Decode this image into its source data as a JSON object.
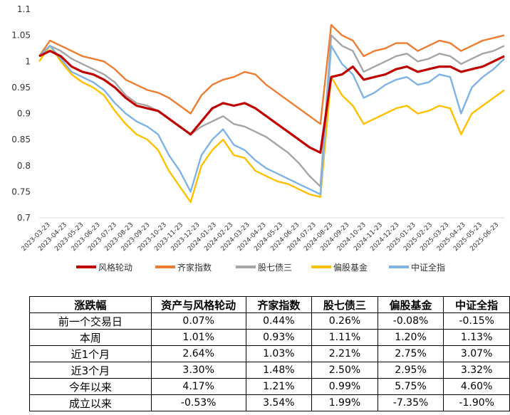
{
  "chart_data": {
    "type": "line",
    "ylim": [
      0.7,
      1.1
    ],
    "y_ticks": [
      "0.7",
      "0.75",
      "0.8",
      "0.85",
      "0.9",
      "0.95",
      "1",
      "1.05",
      "1.1"
    ],
    "x_ticks": [
      "2023-03-23",
      "2023-04-23",
      "2023-05-23",
      "2023-06-23",
      "2023-07-23",
      "2023-08-23",
      "2023-09-23",
      "2023-10-23",
      "2023-11-23",
      "2023-12-23",
      "2024-01-23",
      "2024-02-23",
      "2024-03-23",
      "2024-04-23",
      "2024-05-23",
      "2024-06-23",
      "2024-07-23",
      "2024-08-23",
      "2024-09-23",
      "2024-10-23",
      "2024-11-23",
      "2024-12-23",
      "2025-01-23",
      "2025-02-23",
      "2025-03-23",
      "2025-04-23",
      "2025-05-23",
      "2025-06-23"
    ],
    "grid": false,
    "legend_position": "bottom",
    "series": [
      {
        "name": "风格轮动",
        "color": "#C00000",
        "values": [
          1.01,
          1.02,
          1.01,
          0.99,
          0.98,
          0.975,
          0.965,
          0.95,
          0.93,
          0.915,
          0.91,
          0.905,
          0.89,
          0.875,
          0.86,
          0.885,
          0.91,
          0.92,
          0.915,
          0.92,
          0.91,
          0.895,
          0.88,
          0.865,
          0.85,
          0.835,
          0.825,
          0.97,
          0.975,
          0.99,
          0.965,
          0.97,
          0.975,
          0.985,
          0.99,
          0.98,
          0.985,
          0.99,
          0.99,
          0.98,
          0.985,
          0.99,
          1.0,
          1.01
        ]
      },
      {
        "name": "齐家指数",
        "color": "#ED7D31",
        "values": [
          1.01,
          1.04,
          1.03,
          1.02,
          1.01,
          1.005,
          1.0,
          0.985,
          0.965,
          0.955,
          0.945,
          0.94,
          0.93,
          0.915,
          0.9,
          0.935,
          0.955,
          0.965,
          0.97,
          0.98,
          0.975,
          0.955,
          0.94,
          0.925,
          0.91,
          0.895,
          0.88,
          1.07,
          1.05,
          1.04,
          1.01,
          1.02,
          1.025,
          1.035,
          1.035,
          1.02,
          1.03,
          1.04,
          1.035,
          1.02,
          1.03,
          1.04,
          1.045,
          1.05
        ]
      },
      {
        "name": "股七债三",
        "color": "#A5A5A5",
        "values": [
          1.01,
          1.03,
          1.02,
          1.005,
          0.995,
          0.985,
          0.975,
          0.96,
          0.935,
          0.92,
          0.915,
          0.905,
          0.89,
          0.875,
          0.86,
          0.875,
          0.885,
          0.895,
          0.88,
          0.875,
          0.865,
          0.855,
          0.84,
          0.825,
          0.805,
          0.78,
          0.76,
          1.05,
          1.03,
          1.02,
          0.98,
          0.99,
          1.0,
          1.01,
          1.015,
          1.0,
          1.005,
          1.015,
          1.01,
          0.995,
          1.005,
          1.015,
          1.02,
          1.03
        ]
      },
      {
        "name": "偏股基金",
        "color": "#FFC000",
        "values": [
          1.0,
          1.03,
          1.0,
          0.975,
          0.96,
          0.95,
          0.935,
          0.905,
          0.88,
          0.86,
          0.85,
          0.83,
          0.79,
          0.76,
          0.73,
          0.8,
          0.83,
          0.85,
          0.82,
          0.815,
          0.79,
          0.78,
          0.77,
          0.765,
          0.755,
          0.745,
          0.74,
          0.97,
          0.935,
          0.915,
          0.88,
          0.89,
          0.9,
          0.91,
          0.915,
          0.9,
          0.905,
          0.915,
          0.91,
          0.86,
          0.9,
          0.915,
          0.93,
          0.945
        ]
      },
      {
        "name": "中证全指",
        "color": "#7FB2E5",
        "values": [
          1.01,
          1.03,
          1.005,
          0.98,
          0.97,
          0.96,
          0.945,
          0.92,
          0.9,
          0.885,
          0.875,
          0.86,
          0.82,
          0.79,
          0.75,
          0.82,
          0.85,
          0.87,
          0.84,
          0.83,
          0.81,
          0.795,
          0.785,
          0.775,
          0.765,
          0.755,
          0.745,
          1.03,
          0.995,
          0.975,
          0.93,
          0.94,
          0.955,
          0.965,
          0.97,
          0.955,
          0.96,
          0.975,
          0.97,
          0.9,
          0.95,
          0.97,
          0.985,
          1.005
        ]
      }
    ]
  },
  "table": {
    "headers": [
      "涨跌幅",
      "资产与风格轮动",
      "齐家指数",
      "股七债三",
      "偏股基金",
      "中证全指"
    ],
    "rows": [
      [
        "前一个交易日",
        "0.07%",
        "0.44%",
        "0.26%",
        "-0.08%",
        "-0.15%"
      ],
      [
        "本周",
        "1.01%",
        "0.93%",
        "1.11%",
        "1.20%",
        "1.13%"
      ],
      [
        "近1个月",
        "2.64%",
        "1.03%",
        "2.21%",
        "2.75%",
        "3.07%"
      ],
      [
        "近3个月",
        "3.30%",
        "1.48%",
        "2.50%",
        "2.95%",
        "3.32%"
      ],
      [
        "今年以来",
        "4.17%",
        "1.21%",
        "0.99%",
        "5.75%",
        "4.60%"
      ],
      [
        "成立以来",
        "-0.53%",
        "3.54%",
        "1.99%",
        "-7.35%",
        "-1.90%"
      ]
    ]
  }
}
